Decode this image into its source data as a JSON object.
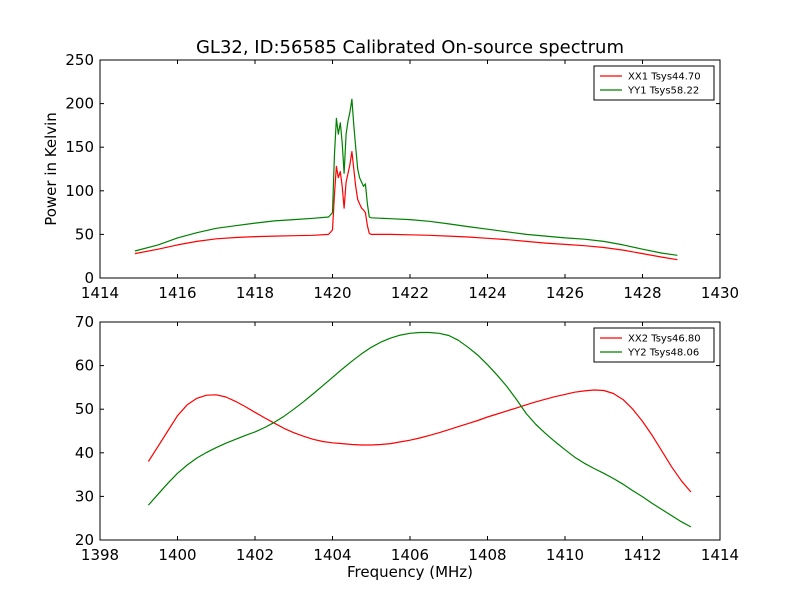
{
  "figure": {
    "title": "GL32, ID:56585 Calibrated On-source spectrum"
  },
  "chart_data": [
    {
      "type": "line",
      "title": "GL32, ID:56585 Calibrated On-source spectrum",
      "xlabel": "",
      "ylabel": "Power in Kelvin",
      "xlim": [
        1414,
        1430
      ],
      "ylim": [
        0,
        250
      ],
      "xticks": [
        "1414",
        "1416",
        "1418",
        "1420",
        "1422",
        "1424",
        "1426",
        "1428",
        "1430"
      ],
      "yticks": [
        "0",
        "50",
        "100",
        "150",
        "200",
        "250"
      ],
      "grid": false,
      "legend_position": "top-right",
      "series": [
        {
          "name": "XX1 Tsys44.70",
          "color": "#ff0000",
          "x": [
            1414.9,
            1415.5,
            1416.0,
            1416.5,
            1417.0,
            1417.5,
            1418.0,
            1418.5,
            1419.0,
            1419.5,
            1419.9,
            1420.0,
            1420.05,
            1420.1,
            1420.15,
            1420.2,
            1420.25,
            1420.3,
            1420.35,
            1420.4,
            1420.45,
            1420.5,
            1420.55,
            1420.6,
            1420.65,
            1420.7,
            1420.75,
            1420.8,
            1420.85,
            1420.9,
            1420.95,
            1421.0,
            1421.5,
            1422.0,
            1422.5,
            1423.0,
            1423.5,
            1424.0,
            1424.5,
            1425.0,
            1425.5,
            1426.0,
            1426.5,
            1427.0,
            1427.5,
            1428.0,
            1428.5,
            1428.9
          ],
          "y": [
            28,
            33,
            38,
            42,
            45,
            46.5,
            47.5,
            48,
            48.5,
            49,
            50,
            55,
            95,
            128,
            115,
            122,
            105,
            80,
            110,
            120,
            130,
            145,
            125,
            105,
            90,
            85,
            80,
            78,
            75,
            60,
            51,
            50,
            50,
            49.5,
            49,
            48,
            47,
            45.5,
            44,
            42,
            40,
            38.5,
            37,
            35,
            32,
            28,
            24,
            21
          ]
        },
        {
          "name": "YY1 Tsys58.22",
          "color": "#008000",
          "x": [
            1414.9,
            1415.5,
            1416.0,
            1416.5,
            1417.0,
            1417.5,
            1418.0,
            1418.5,
            1419.0,
            1419.5,
            1419.9,
            1420.0,
            1420.05,
            1420.1,
            1420.15,
            1420.2,
            1420.25,
            1420.3,
            1420.35,
            1420.4,
            1420.45,
            1420.5,
            1420.55,
            1420.6,
            1420.65,
            1420.7,
            1420.75,
            1420.8,
            1420.85,
            1420.9,
            1420.95,
            1421.0,
            1421.5,
            1422.0,
            1422.5,
            1423.0,
            1423.5,
            1424.0,
            1424.5,
            1425.0,
            1425.5,
            1426.0,
            1426.5,
            1427.0,
            1427.5,
            1428.0,
            1428.5,
            1428.9
          ],
          "y": [
            31,
            38,
            46,
            52,
            57,
            60,
            63,
            65.5,
            67,
            68.5,
            70,
            75,
            140,
            183,
            165,
            178,
            155,
            120,
            165,
            180,
            190,
            205,
            175,
            150,
            125,
            115,
            110,
            105,
            108,
            85,
            70,
            69,
            68,
            67,
            65,
            62,
            59,
            56,
            53,
            50,
            48,
            46,
            44.5,
            42,
            38,
            33,
            28.5,
            26
          ]
        }
      ]
    },
    {
      "type": "line",
      "title": "",
      "xlabel": "Frequency (MHz)",
      "ylabel": "",
      "xlim": [
        1398,
        1414
      ],
      "ylim": [
        20,
        70
      ],
      "xticks": [
        "1398",
        "1400",
        "1402",
        "1404",
        "1406",
        "1408",
        "1410",
        "1412",
        "1414"
      ],
      "yticks": [
        "20",
        "30",
        "40",
        "50",
        "60",
        "70"
      ],
      "grid": false,
      "legend_position": "top-right",
      "series": [
        {
          "name": "XX2 Tsys46.80",
          "color": "#ff0000",
          "x": [
            1399.25,
            1399.5,
            1399.75,
            1400.0,
            1400.25,
            1400.5,
            1400.75,
            1401.0,
            1401.25,
            1401.5,
            1401.75,
            1402.0,
            1402.25,
            1402.5,
            1402.75,
            1403.0,
            1403.25,
            1403.5,
            1403.75,
            1404.0,
            1404.25,
            1404.5,
            1404.75,
            1405.0,
            1405.25,
            1405.5,
            1405.75,
            1406.0,
            1406.25,
            1406.5,
            1406.75,
            1407.0,
            1407.25,
            1407.5,
            1407.75,
            1408.0,
            1408.25,
            1408.5,
            1408.75,
            1409.0,
            1409.25,
            1409.5,
            1409.75,
            1410.0,
            1410.25,
            1410.5,
            1410.75,
            1411.0,
            1411.25,
            1411.5,
            1411.75,
            1412.0,
            1412.25,
            1412.5,
            1412.75,
            1413.0,
            1413.25
          ],
          "y": [
            38,
            41.5,
            45,
            48.5,
            51,
            52.5,
            53.2,
            53.3,
            52.8,
            51.8,
            50.6,
            49.3,
            48,
            46.8,
            45.6,
            44.6,
            43.8,
            43.1,
            42.6,
            42.3,
            42.1,
            41.9,
            41.8,
            41.8,
            41.9,
            42.1,
            42.5,
            42.9,
            43.4,
            44,
            44.6,
            45.3,
            46,
            46.7,
            47.4,
            48.2,
            48.9,
            49.6,
            50.3,
            51,
            51.7,
            52.3,
            52.9,
            53.4,
            53.9,
            54.2,
            54.4,
            54.3,
            53.6,
            52.2,
            50,
            47.2,
            44,
            40.4,
            36.8,
            33.6,
            31
          ]
        },
        {
          "name": "YY2 Tsys48.06",
          "color": "#008000",
          "x": [
            1399.25,
            1399.5,
            1399.75,
            1400.0,
            1400.25,
            1400.5,
            1400.75,
            1401.0,
            1401.25,
            1401.5,
            1401.75,
            1402.0,
            1402.25,
            1402.5,
            1402.75,
            1403.0,
            1403.25,
            1403.5,
            1403.75,
            1404.0,
            1404.25,
            1404.5,
            1404.75,
            1405.0,
            1405.25,
            1405.5,
            1405.75,
            1406.0,
            1406.25,
            1406.5,
            1406.75,
            1407.0,
            1407.25,
            1407.5,
            1407.75,
            1408.0,
            1408.25,
            1408.5,
            1408.75,
            1409.0,
            1409.25,
            1409.5,
            1409.75,
            1410.0,
            1410.25,
            1410.5,
            1410.75,
            1411.0,
            1411.25,
            1411.5,
            1411.75,
            1412.0,
            1412.25,
            1412.5,
            1412.75,
            1413.0,
            1413.25
          ],
          "y": [
            28,
            30.5,
            33,
            35.3,
            37.2,
            38.8,
            40.1,
            41.2,
            42.2,
            43.1,
            44,
            44.8,
            45.8,
            47,
            48.4,
            50,
            51.7,
            53.5,
            55.4,
            57.3,
            59.2,
            61,
            62.7,
            64.2,
            65.4,
            66.3,
            67,
            67.4,
            67.6,
            67.6,
            67.4,
            66.9,
            65.8,
            64.2,
            62.4,
            60.2,
            57.8,
            55.2,
            52.2,
            49,
            46.5,
            44.4,
            42.5,
            40.7,
            39,
            37.6,
            36.4,
            35.3,
            34.1,
            32.8,
            31.3,
            29.9,
            28.4,
            27,
            25.6,
            24.2,
            23
          ]
        }
      ]
    }
  ]
}
